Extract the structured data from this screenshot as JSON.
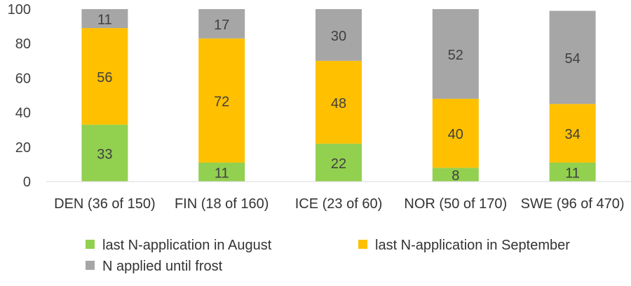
{
  "chart_data": {
    "type": "bar",
    "stacked": true,
    "title": "",
    "xlabel": "",
    "ylabel": "",
    "ylim": [
      0,
      100
    ],
    "yticks": [
      0,
      20,
      40,
      60,
      80,
      100
    ],
    "grid": false,
    "legend_position": "bottom",
    "categories": [
      "DEN (36 of 150)",
      "FIN (18 of 160)",
      "ICE (23 of 60)",
      "NOR (50 of 170)",
      "SWE (96 of 470)"
    ],
    "series": [
      {
        "name": "last N-application in August",
        "color": "#92d050",
        "values": [
          33,
          11,
          22,
          8,
          11
        ]
      },
      {
        "name": "last N-application in September",
        "color": "#ffc000",
        "values": [
          56,
          72,
          48,
          40,
          34
        ]
      },
      {
        "name": "N applied until frost",
        "color": "#a6a6a6",
        "values": [
          11,
          17,
          30,
          52,
          54
        ]
      }
    ]
  }
}
